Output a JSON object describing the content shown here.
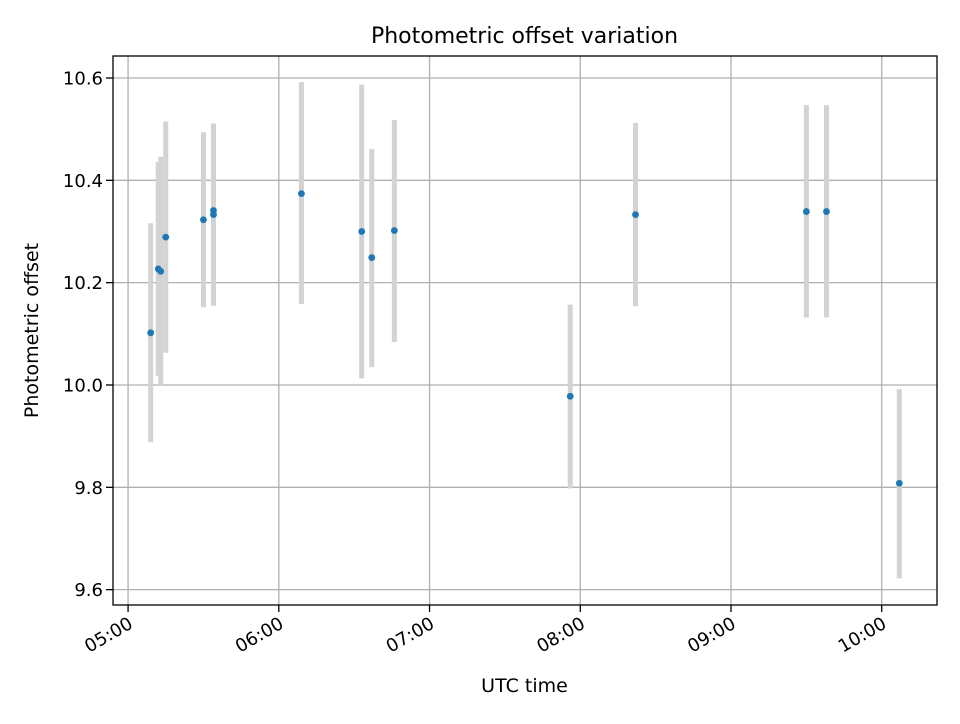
{
  "chart_data": {
    "type": "scatter",
    "title": "Photometric offset variation",
    "xlabel": "UTC time",
    "ylabel": "Photometric offset",
    "x_is_time": true,
    "xlim": [
      "04:54",
      "10:22"
    ],
    "ylim": [
      9.57,
      10.643
    ],
    "xticks": [
      "05:00",
      "06:00",
      "07:00",
      "08:00",
      "09:00",
      "10:00"
    ],
    "yticks": [
      "9.6",
      "9.8",
      "10.0",
      "10.2",
      "10.4",
      "10.6"
    ],
    "grid": true,
    "legend": "none",
    "colors": {
      "point": "#1f77b4",
      "errorbar": "#d3d3d3",
      "grid": "#b0b0b0"
    },
    "points": [
      {
        "x": "05:09",
        "y": 10.102,
        "y_low": 9.888,
        "y_high": 10.316
      },
      {
        "x": "05:12",
        "y": 10.227,
        "y_low": 10.018,
        "y_high": 10.436
      },
      {
        "x": "05:13",
        "y": 10.222,
        "y_low": 9.998,
        "y_high": 10.446
      },
      {
        "x": "05:15",
        "y": 10.289,
        "y_low": 10.063,
        "y_high": 10.515
      },
      {
        "x": "05:30",
        "y": 10.323,
        "y_low": 10.152,
        "y_high": 10.494
      },
      {
        "x": "05:34",
        "y": 10.341,
        "y_low": 10.155,
        "y_high": 10.511
      },
      {
        "x": "05:34",
        "y": 10.333,
        "y_low": 10.155,
        "y_high": 10.511
      },
      {
        "x": "06:09",
        "y": 10.374,
        "y_low": 10.158,
        "y_high": 10.592
      },
      {
        "x": "06:33",
        "y": 10.3,
        "y_low": 10.013,
        "y_high": 10.587
      },
      {
        "x": "06:37",
        "y": 10.249,
        "y_low": 10.035,
        "y_high": 10.461
      },
      {
        "x": "06:46",
        "y": 10.302,
        "y_low": 10.084,
        "y_high": 10.518
      },
      {
        "x": "07:56",
        "y": 9.978,
        "y_low": 9.798,
        "y_high": 10.157
      },
      {
        "x": "08:22",
        "y": 10.333,
        "y_low": 10.154,
        "y_high": 10.512
      },
      {
        "x": "09:30",
        "y": 10.339,
        "y_low": 10.132,
        "y_high": 10.547
      },
      {
        "x": "09:38",
        "y": 10.339,
        "y_low": 10.132,
        "y_high": 10.547
      },
      {
        "x": "10:07",
        "y": 9.808,
        "y_low": 9.622,
        "y_high": 9.992
      }
    ]
  }
}
